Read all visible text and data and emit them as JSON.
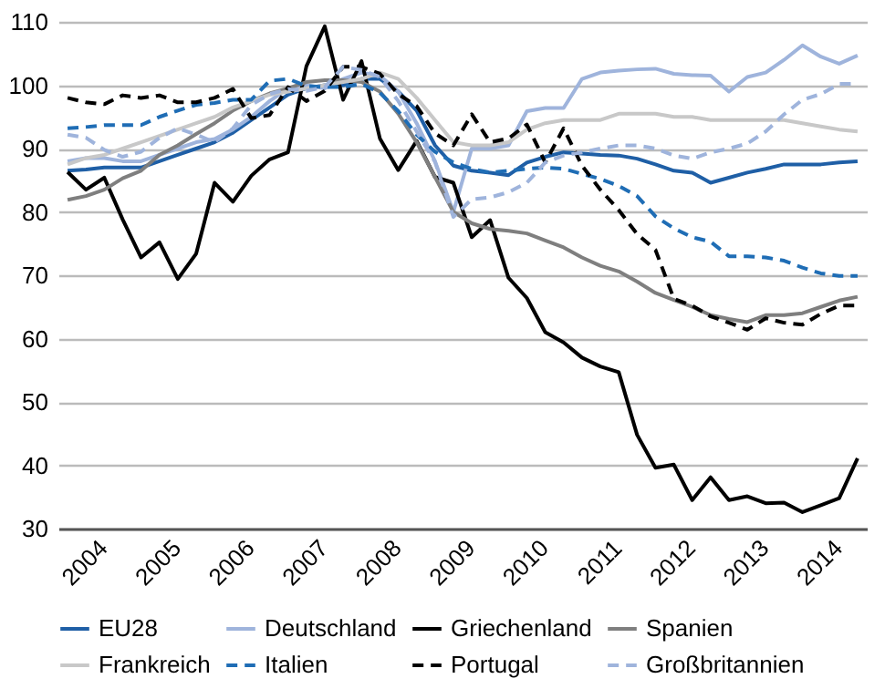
{
  "chart_data": {
    "type": "line",
    "x": [
      2004.125,
      2004.375,
      2004.625,
      2004.875,
      2005.125,
      2005.375,
      2005.625,
      2005.875,
      2006.125,
      2006.375,
      2006.625,
      2006.875,
      2007.125,
      2007.375,
      2007.625,
      2007.875,
      2008.125,
      2008.375,
      2008.625,
      2008.875,
      2009.125,
      2009.375,
      2009.625,
      2009.875,
      2010.125,
      2010.375,
      2010.625,
      2010.875,
      2011.125,
      2011.375,
      2011.625,
      2011.875,
      2012.125,
      2012.375,
      2012.625,
      2012.875,
      2013.125,
      2013.375,
      2013.625,
      2013.875,
      2014.125,
      2014.375,
      2014.625,
      2014.875
    ],
    "xlim": [
      2004,
      2015
    ],
    "xticks": [
      {
        "value": 2004.5,
        "label": "2004"
      },
      {
        "value": 2005.5,
        "label": "2005"
      },
      {
        "value": 2006.5,
        "label": "2006"
      },
      {
        "value": 2007.5,
        "label": "2007"
      },
      {
        "value": 2008.5,
        "label": "2008"
      },
      {
        "value": 2009.5,
        "label": "2009"
      },
      {
        "value": 2010.5,
        "label": "2010"
      },
      {
        "value": 2011.5,
        "label": "2011"
      },
      {
        "value": 2012.5,
        "label": "2012"
      },
      {
        "value": 2013.5,
        "label": "2013"
      },
      {
        "value": 2014.5,
        "label": "2014"
      }
    ],
    "ylim": [
      30,
      110
    ],
    "yticks": [
      30,
      40,
      50,
      60,
      70,
      80,
      90,
      100,
      110
    ],
    "grid": "y",
    "legend": "bottom",
    "series": [
      {
        "name": "EU28",
        "color": "#1f5fa6",
        "line_style": "solid",
        "values": [
          86.5,
          86.7,
          87,
          87,
          87,
          88,
          89,
          90,
          91,
          92.5,
          94.5,
          96.5,
          98.5,
          99.5,
          100,
          100,
          101,
          101,
          99,
          96,
          90.5,
          87.3,
          86.5,
          86.2,
          85.8,
          87.8,
          88.7,
          89.4,
          89.2,
          89,
          88.9,
          88.4,
          87.5,
          86.5,
          86.2,
          84.6,
          85.4,
          86.2,
          86.8,
          87.5,
          87.5,
          87.5,
          87.8,
          88
        ]
      },
      {
        "name": "Deutschland",
        "color": "#9fb4dc",
        "line_style": "solid",
        "values": [
          88,
          88.5,
          88.5,
          88,
          88,
          89,
          90,
          91,
          91.5,
          93,
          95,
          97.5,
          99.5,
          100,
          99.5,
          101,
          102,
          101.5,
          99,
          94,
          88,
          80,
          90,
          90,
          90.5,
          95.9,
          96.4,
          96.4,
          101,
          102,
          102.3,
          102.5,
          102.6,
          101.8,
          101.6,
          101.5,
          99,
          101.3,
          102,
          104,
          106.3,
          104.5,
          103.4,
          104.7
        ]
      },
      {
        "name": "Griechenland",
        "color": "#000000",
        "line_style": "solid",
        "values": [
          86.3,
          83.5,
          85.4,
          78.8,
          72.8,
          75.2,
          69.4,
          73.4,
          84.6,
          81.6,
          85.7,
          88.3,
          89.4,
          103,
          109.3,
          97.7,
          103.8,
          91.6,
          86.6,
          91.2,
          85.5,
          84.6,
          76,
          78.7,
          69.6,
          66.4,
          61,
          59.4,
          57,
          55.6,
          54.7,
          44.8,
          39.6,
          40.1,
          34.5,
          38.1,
          34.5,
          35.1,
          34,
          34.1,
          32.6,
          33.7,
          34.8,
          41.1
        ]
      },
      {
        "name": "Spanien",
        "color": "#7f7f7f",
        "line_style": "solid",
        "values": [
          81.9,
          82.5,
          83.5,
          85.3,
          86.5,
          89,
          90.5,
          92.3,
          94,
          96,
          97.5,
          98.7,
          99.5,
          100.5,
          100.8,
          100.8,
          100.5,
          99,
          95.5,
          91,
          85.5,
          80,
          78.2,
          77.3,
          77,
          76.6,
          75.5,
          74.4,
          72.8,
          71.5,
          70.6,
          69,
          67.2,
          66.1,
          65,
          63.7,
          63.1,
          62.6,
          63.7,
          63.7,
          64,
          65,
          66,
          66.6
        ]
      },
      {
        "name": "Frankreich",
        "color": "#c8c8c8",
        "line_style": "solid",
        "values": [
          87.5,
          88.5,
          89,
          90,
          91,
          92,
          93,
          94,
          95,
          96.5,
          97.5,
          98.5,
          99,
          99.5,
          100,
          100.5,
          101,
          102,
          101,
          98,
          94.5,
          91,
          90.5,
          90.5,
          91,
          93,
          94,
          94.5,
          94.5,
          94.5,
          95.5,
          95.5,
          95.5,
          95,
          95,
          94.5,
          94.5,
          94.5,
          94.5,
          94.5,
          94,
          93.5,
          93,
          92.7
        ]
      },
      {
        "name": "Italien",
        "color": "#1f6db5",
        "line_style": "dashed",
        "values": [
          93.2,
          93.4,
          93.7,
          93.7,
          93.7,
          95,
          96,
          96.9,
          97.2,
          97.7,
          97.7,
          100.7,
          101,
          99.9,
          99.7,
          99.7,
          100.2,
          98.8,
          95.9,
          92.2,
          89.5,
          87.8,
          86.8,
          86.2,
          86.5,
          86.8,
          87,
          86.8,
          86,
          85.2,
          84.1,
          82.5,
          79.3,
          77.4,
          76,
          75.3,
          73,
          73,
          72.8,
          72.3,
          71.2,
          70.3,
          69.9,
          69.9
        ]
      },
      {
        "name": "Portugal",
        "color": "#000000",
        "line_style": "dashed",
        "values": [
          98,
          97.3,
          97,
          98.4,
          98,
          98.4,
          97.3,
          97.3,
          98,
          99.4,
          94.8,
          95.3,
          99.7,
          97.5,
          99.1,
          102.9,
          102.9,
          101.8,
          98.6,
          96.7,
          92.4,
          90.5,
          95.4,
          91,
          91.6,
          93.8,
          87.8,
          93.2,
          87.3,
          83.5,
          80.3,
          76.5,
          74,
          66.3,
          65.2,
          63.5,
          62.5,
          61.4,
          63.2,
          62.5,
          62.2,
          63.9,
          65.2,
          65.2
        ]
      },
      {
        "name": "Großbritannien",
        "color": "#9fb4dc",
        "line_style": "dashed",
        "values": [
          92.2,
          91.7,
          89.8,
          88.7,
          89.5,
          91.7,
          93.2,
          92.2,
          91,
          93.2,
          96.9,
          98.6,
          99.4,
          99.1,
          99.7,
          102.9,
          102.4,
          101.3,
          97.5,
          92.7,
          87.9,
          79.2,
          82,
          82.3,
          83.1,
          84.6,
          87.8,
          88.9,
          89.4,
          90,
          90.5,
          90.5,
          90,
          88.9,
          88.4,
          89.4,
          90,
          90.8,
          92.7,
          95.4,
          97.7,
          98.6,
          100.2,
          100.2
        ]
      }
    ]
  }
}
